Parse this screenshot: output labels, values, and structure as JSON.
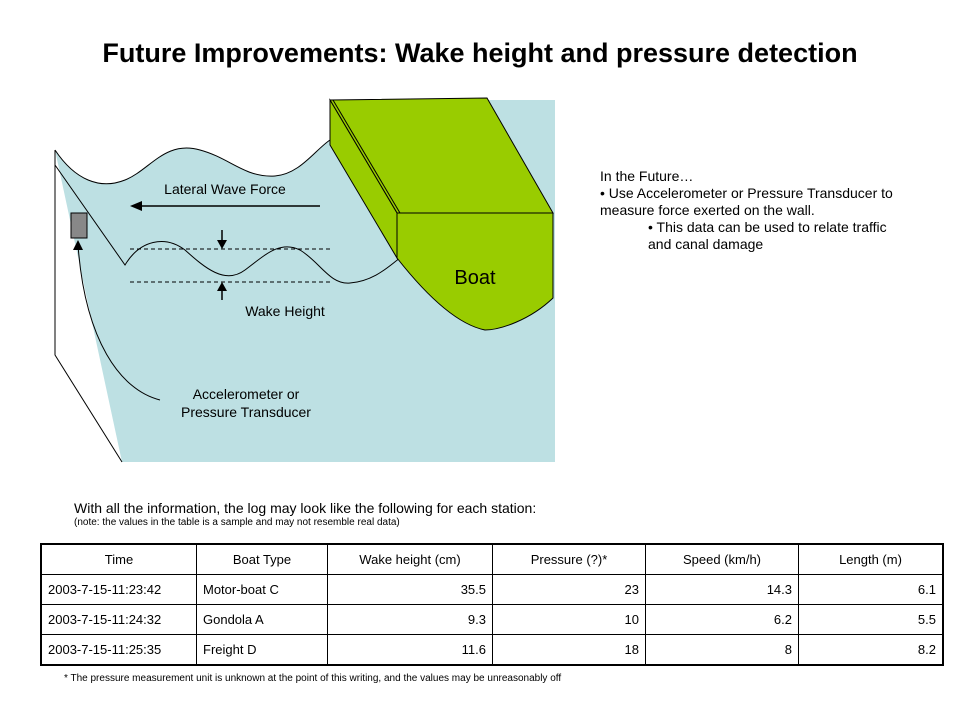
{
  "title": "Future Improvements:  Wake height and pressure detection",
  "diagram": {
    "boat_label": "Boat",
    "lateral_label": "Lateral Wave Force",
    "wake_label": "Wake Height",
    "sensor_label_1": "Accelerometer or",
    "sensor_label_2": "Pressure Transducer",
    "colors": {
      "water": "#bde0e3",
      "boat": "#99cc00"
    }
  },
  "future": {
    "heading": "In the Future…",
    "bullet1": "• Use Accelerometer or Pressure Transducer to measure force exerted on the wall.",
    "bullet2": "• This data can be used to relate traffic and canal damage"
  },
  "log_intro": "With all the information, the log may look like the following for each station:",
  "log_note": "(note: the values in the table is a sample and may not resemble real data)",
  "table": {
    "headers": [
      "Time",
      "Boat Type",
      "Wake height (cm)",
      "Pressure (?)*",
      "Speed (km/h)",
      "Length (m)"
    ],
    "rows": [
      [
        "2003-7-15-11:23:42",
        "Motor-boat C",
        "35.5",
        "23",
        "14.3",
        "6.1"
      ],
      [
        "2003-7-15-11:24:32",
        "Gondola A",
        "9.3",
        "10",
        "6.2",
        "5.5"
      ],
      [
        "2003-7-15-11:25:35",
        "Freight D",
        "11.6",
        "18",
        "8",
        "8.2"
      ]
    ]
  },
  "footnote": "* The pressure measurement unit is unknown at the point of this writing, and the values may be unreasonably off"
}
